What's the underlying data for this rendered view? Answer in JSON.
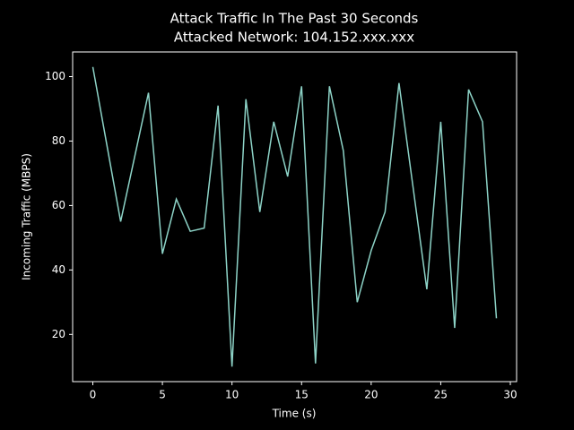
{
  "chart_data": {
    "type": "line",
    "title": "Attack Traffic In The Past 30 Seconds",
    "subtitle": "Attacked Network: 104.152.xxx.xxx",
    "x_label": "Time (s)",
    "y_label": "Incoming Traffic (MBPS)",
    "x": [
      0,
      1,
      2,
      3,
      4,
      5,
      6,
      7,
      8,
      9,
      10,
      11,
      12,
      13,
      14,
      15,
      16,
      17,
      18,
      19,
      20,
      21,
      22,
      23,
      24,
      25,
      26,
      27,
      28,
      29
    ],
    "series": [
      {
        "name": "Traffic",
        "color": "#8dd3c7",
        "values": [
          103,
          79,
          55,
          75,
          95,
          45,
          62,
          52,
          53,
          91,
          10,
          93,
          58,
          86,
          69,
          97,
          11,
          97,
          77,
          30,
          46,
          58,
          98,
          66,
          34,
          86,
          22,
          96,
          86,
          25
        ]
      }
    ],
    "xlim": [
      -1.45,
      30.45
    ],
    "xticks": [
      0,
      5,
      10,
      15,
      20,
      25,
      30
    ],
    "ylim": [
      5.35,
      107.65
    ],
    "yticks": [
      20,
      40,
      60,
      80,
      100
    ],
    "grid": false,
    "legend": false
  }
}
